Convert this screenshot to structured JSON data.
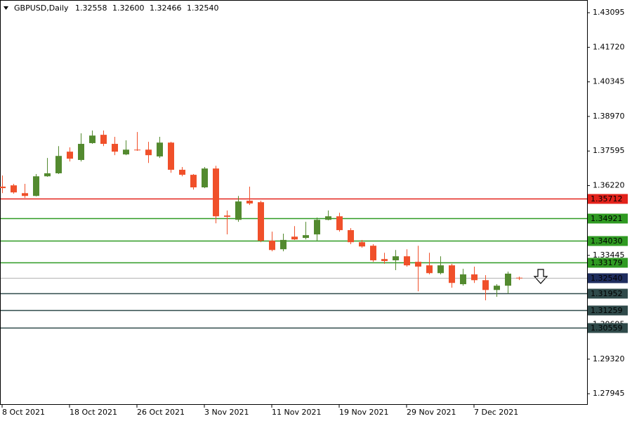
{
  "chart_data": {
    "type": "candlestick",
    "symbol": "GBPUSD,Daily",
    "header_labels": [
      "1.32558",
      "1.32600",
      "1.32466",
      "1.32540"
    ],
    "categories": [
      "8 Oct 2021",
      null,
      null,
      null,
      null,
      null,
      "18 Oct 2021",
      null,
      null,
      null,
      null,
      null,
      "26 Oct 2021",
      null,
      null,
      null,
      null,
      null,
      "3 Nov 2021",
      null,
      null,
      null,
      null,
      null,
      "11 Nov 2021",
      null,
      null,
      null,
      null,
      null,
      "19 Nov 2021",
      null,
      null,
      null,
      null,
      null,
      "29 Nov 2021",
      null,
      null,
      null,
      null,
      null,
      "7 Dec 2021",
      null,
      null,
      null,
      null
    ],
    "open": [
      1.3618,
      1.3623,
      1.3592,
      1.3581,
      1.3659,
      1.3671,
      1.3757,
      1.3724,
      1.3791,
      1.3824,
      1.3788,
      1.3746,
      1.3765,
      1.3765,
      1.3738,
      1.3793,
      1.3685,
      1.3665,
      1.3615,
      1.369,
      1.3503,
      1.3486,
      1.3562,
      1.3556,
      1.3403,
      1.3369,
      1.3419,
      1.3414,
      1.3428,
      1.3486,
      1.35,
      1.3445,
      1.3397,
      1.3383,
      1.333,
      1.3325,
      1.3341,
      1.3319,
      1.3305,
      1.3274,
      1.3305,
      1.323,
      1.3269,
      1.3246,
      1.3207,
      1.3224,
      1.32558
    ],
    "high": [
      1.3662,
      1.3629,
      1.3629,
      1.3668,
      1.3732,
      1.3779,
      1.3774,
      1.383,
      1.3841,
      1.3841,
      1.3816,
      1.3802,
      1.3835,
      1.3796,
      1.3816,
      1.3796,
      1.3696,
      1.3668,
      1.3696,
      1.3701,
      1.3523,
      1.3581,
      1.3618,
      1.3562,
      1.3439,
      1.3431,
      1.3461,
      1.3478,
      1.3495,
      1.3523,
      1.3514,
      1.3453,
      1.3406,
      1.3389,
      1.3355,
      1.3366,
      1.3369,
      1.3383,
      1.3355,
      1.3341,
      1.3311,
      1.3291,
      1.33,
      1.3266,
      1.323,
      1.328,
      1.326
    ],
    "low": [
      1.3592,
      1.359,
      1.3573,
      1.3579,
      1.3657,
      1.3668,
      1.3718,
      1.3718,
      1.3788,
      1.3779,
      1.3743,
      1.3743,
      1.376,
      1.3712,
      1.3732,
      1.3673,
      1.3659,
      1.3606,
      1.3612,
      1.3472,
      1.3428,
      1.3478,
      1.3545,
      1.3397,
      1.3361,
      1.3361,
      1.3406,
      1.3408,
      1.3403,
      1.3484,
      1.3439,
      1.3389,
      1.3375,
      1.3319,
      1.3311,
      1.3286,
      1.33,
      1.3202,
      1.3269,
      1.3269,
      1.3216,
      1.3224,
      1.3235,
      1.3166,
      1.318,
      1.3193,
      1.32466
    ],
    "close": [
      1.3612,
      1.3595,
      1.3581,
      1.3659,
      1.3671,
      1.374,
      1.3729,
      1.3788,
      1.3821,
      1.3788,
      1.3757,
      1.3765,
      1.3763,
      1.3743,
      1.3793,
      1.3685,
      1.3665,
      1.3615,
      1.369,
      1.35,
      1.3498,
      1.3559,
      1.3551,
      1.3403,
      1.3366,
      1.3406,
      1.3408,
      1.3425,
      1.3486,
      1.35,
      1.3445,
      1.3397,
      1.338,
      1.3325,
      1.3322,
      1.3341,
      1.3305,
      1.33,
      1.3274,
      1.3305,
      1.3235,
      1.3269,
      1.3246,
      1.3207,
      1.3224,
      1.3272,
      1.3254
    ],
    "up_color": "#538a2f",
    "down_color": "#f0502a",
    "ylim": [
      1.2753,
      1.436
    ],
    "yticks": [
      1.43095,
      {
        "value": 1.4172,
        "label": "1.41720"
      },
      1.40345,
      {
        "value": 1.3897,
        "label": "1.38970"
      },
      1.37595,
      {
        "value": 1.3622,
        "label": "1.36220"
      },
      1.33445,
      1.30695,
      {
        "value": 1.2932,
        "label": "1.29320"
      },
      1.27945
    ],
    "levels": [
      {
        "value": 1.35712,
        "color": "#e3221b"
      },
      {
        "value": 1.34921,
        "color": "#2f9a22"
      },
      {
        "value": 1.3403,
        "label": "1.34030",
        "color": "#2f9a22"
      },
      {
        "value": 1.33179,
        "color": "#2f9a22"
      },
      {
        "value": 1.31952,
        "color": "#2f4a4a"
      },
      {
        "value": 1.31259,
        "color": "#2f4a4a"
      },
      {
        "value": 1.30559,
        "color": "#2f4a4a"
      }
    ],
    "last_price_color": "#1f2d5e"
  }
}
